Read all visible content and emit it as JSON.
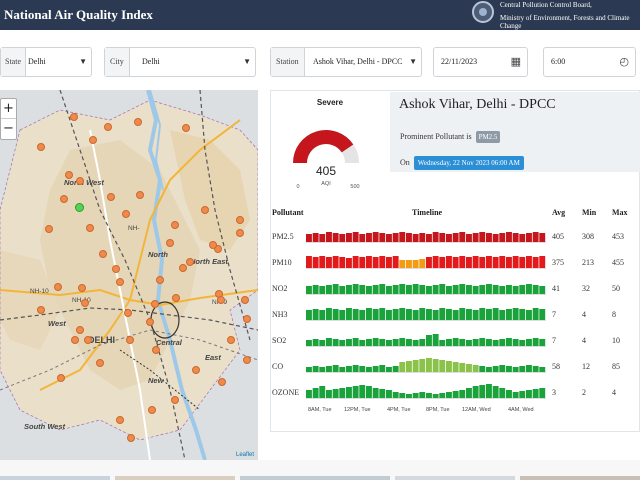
{
  "header": {
    "title": "National Air Quality Index",
    "org_line1": "Central Pollution Control Board,",
    "org_line2": "Ministry of Environment, Forests and Climate Change"
  },
  "filters": {
    "state": {
      "label": "State",
      "value": "Delhi"
    },
    "city": {
      "label": "City",
      "value": "Delhi"
    },
    "station": {
      "label": "Station",
      "value": "Ashok Vihar, Delhi - DPCC"
    },
    "date": {
      "value": "22/11/2023"
    },
    "time": {
      "value": "6:00"
    }
  },
  "map": {
    "zoom_in": "+",
    "zoom_out": "−",
    "labels": {
      "north_west": "North West",
      "north": "North",
      "north_east": "North East",
      "west": "West",
      "delhi": "DELHI",
      "central": "Central",
      "east": "East",
      "new_delhi": "New",
      "south_west": "South West",
      "nh10": "NH-10",
      "nh10b": "NH-10",
      "nh9": "NH-9",
      "nh": "NH-"
    },
    "attribution": "Leaflet"
  },
  "aqi": {
    "category": "Severe",
    "value": "405",
    "unit": "AQI",
    "min": "0",
    "max": "500",
    "level": 0.81,
    "color": "#c4161c"
  },
  "station_info": {
    "name": "Ashok Vihar, Delhi - DPCC",
    "prominent_label": "Prominent Pollutant is",
    "prominent_value": "PM2.5",
    "on_label": "On",
    "on_value": "Wednesday, 22 Nov 2023 06:00 AM"
  },
  "table": {
    "headers": {
      "pollutant": "Pollutant",
      "timeline": "Timeline",
      "avg": "Avg",
      "min": "Min",
      "max": "Max"
    },
    "rows": [
      {
        "name": "PM2.5",
        "avg": "405",
        "min": "308",
        "max": "453"
      },
      {
        "name": "PM10",
        "avg": "375",
        "min": "213",
        "max": "455"
      },
      {
        "name": "NO2",
        "avg": "41",
        "min": "32",
        "max": "50"
      },
      {
        "name": "NH3",
        "avg": "7",
        "min": "4",
        "max": "8"
      },
      {
        "name": "SO2",
        "avg": "7",
        "min": "4",
        "max": "10"
      },
      {
        "name": "CO",
        "avg": "58",
        "min": "12",
        "max": "85"
      },
      {
        "name": "OZONE",
        "avg": "3",
        "min": "2",
        "max": "4"
      }
    ],
    "time_labels": [
      "8AM, Tue",
      "12PM, Tue",
      "4PM, Tue",
      "8PM, Tue",
      "12AM, Wed",
      "4AM, Wed"
    ]
  },
  "colors": {
    "header_bg": "#2b3a52",
    "severe": "#c4161c",
    "very_poor": "#e31a1c",
    "poor": "#f39c12",
    "good": "#1aa33a",
    "satisfactory": "#8bc34a"
  }
}
